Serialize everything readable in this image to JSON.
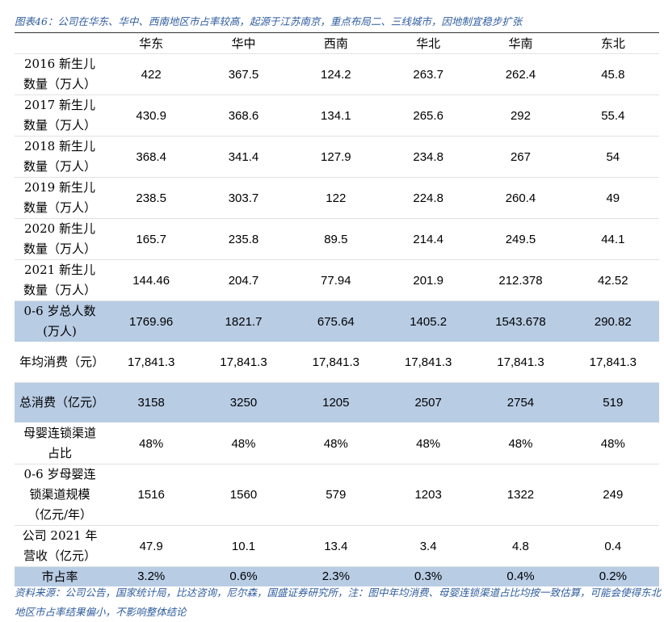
{
  "title": "图表46：公司在华东、华中、西南地区市占率较高，起源于江苏南京，重点布局二、三线城市，因地制宜稳步扩张",
  "table": {
    "header": [
      "华东",
      "华中",
      "西南",
      "华北",
      "华南",
      "东北"
    ],
    "rows": [
      {
        "label": "2016 新生儿数量（万人）",
        "cells": [
          "422",
          "367.5",
          "124.2",
          "263.7",
          "262.4",
          "45.8"
        ]
      },
      {
        "label": "2017 新生儿数量（万人）",
        "cells": [
          "430.9",
          "368.6",
          "134.1",
          "265.6",
          "292",
          "55.4"
        ]
      },
      {
        "label": "2018 新生儿数量（万人）",
        "cells": [
          "368.4",
          "341.4",
          "127.9",
          "234.8",
          "267",
          "54"
        ]
      },
      {
        "label": "2019 新生儿数量（万人）",
        "cells": [
          "238.5",
          "303.7",
          "122",
          "224.8",
          "260.4",
          "49"
        ]
      },
      {
        "label": "2020 新生儿数量（万人）",
        "cells": [
          "165.7",
          "235.8",
          "89.5",
          "214.4",
          "249.5",
          "44.1"
        ]
      },
      {
        "label": "2021 新生儿数量（万人）",
        "cells": [
          "144.46",
          "204.7",
          "77.94",
          "201.9",
          "212.378",
          "42.52"
        ]
      },
      {
        "label": "0-6 岁总人数(万人)",
        "cells": [
          "1769.96",
          "1821.7",
          "675.64",
          "1405.2",
          "1543.678",
          "290.82"
        ]
      },
      {
        "label": "年均消费（元）",
        "cells": [
          "17,841.3",
          "17,841.3",
          "17,841.3",
          "17,841.3",
          "17,841.3",
          "17,841.3"
        ]
      },
      {
        "label": "总消费（亿元）",
        "cells": [
          "3158",
          "3250",
          "1205",
          "2507",
          "2754",
          "519"
        ]
      },
      {
        "label": "母婴连锁渠道占比",
        "cells": [
          "48%",
          "48%",
          "48%",
          "48%",
          "48%",
          "48%"
        ]
      },
      {
        "label": "0-6 岁母婴连锁渠道规模（亿元/年）",
        "cells": [
          "1516",
          "1560",
          "579",
          "1203",
          "1322",
          "249"
        ]
      },
      {
        "label": "公司 2021 年营收（亿元）",
        "cells": [
          "47.9",
          "10.1",
          "13.4",
          "3.4",
          "4.8",
          "0.4"
        ]
      },
      {
        "label": "市占率",
        "cells": [
          "3.2%",
          "0.6%",
          "2.3%",
          "0.3%",
          "0.4%",
          "0.2%"
        ]
      }
    ]
  },
  "source": "资料来源：公司公告，国家统计局，比达咨询，尼尔森，国盛证券研究所，注：图中年均消费、母婴连锁渠道占比均按一致估算，可能会使得东北地区市占率结果偏小，不影响整体结论"
}
